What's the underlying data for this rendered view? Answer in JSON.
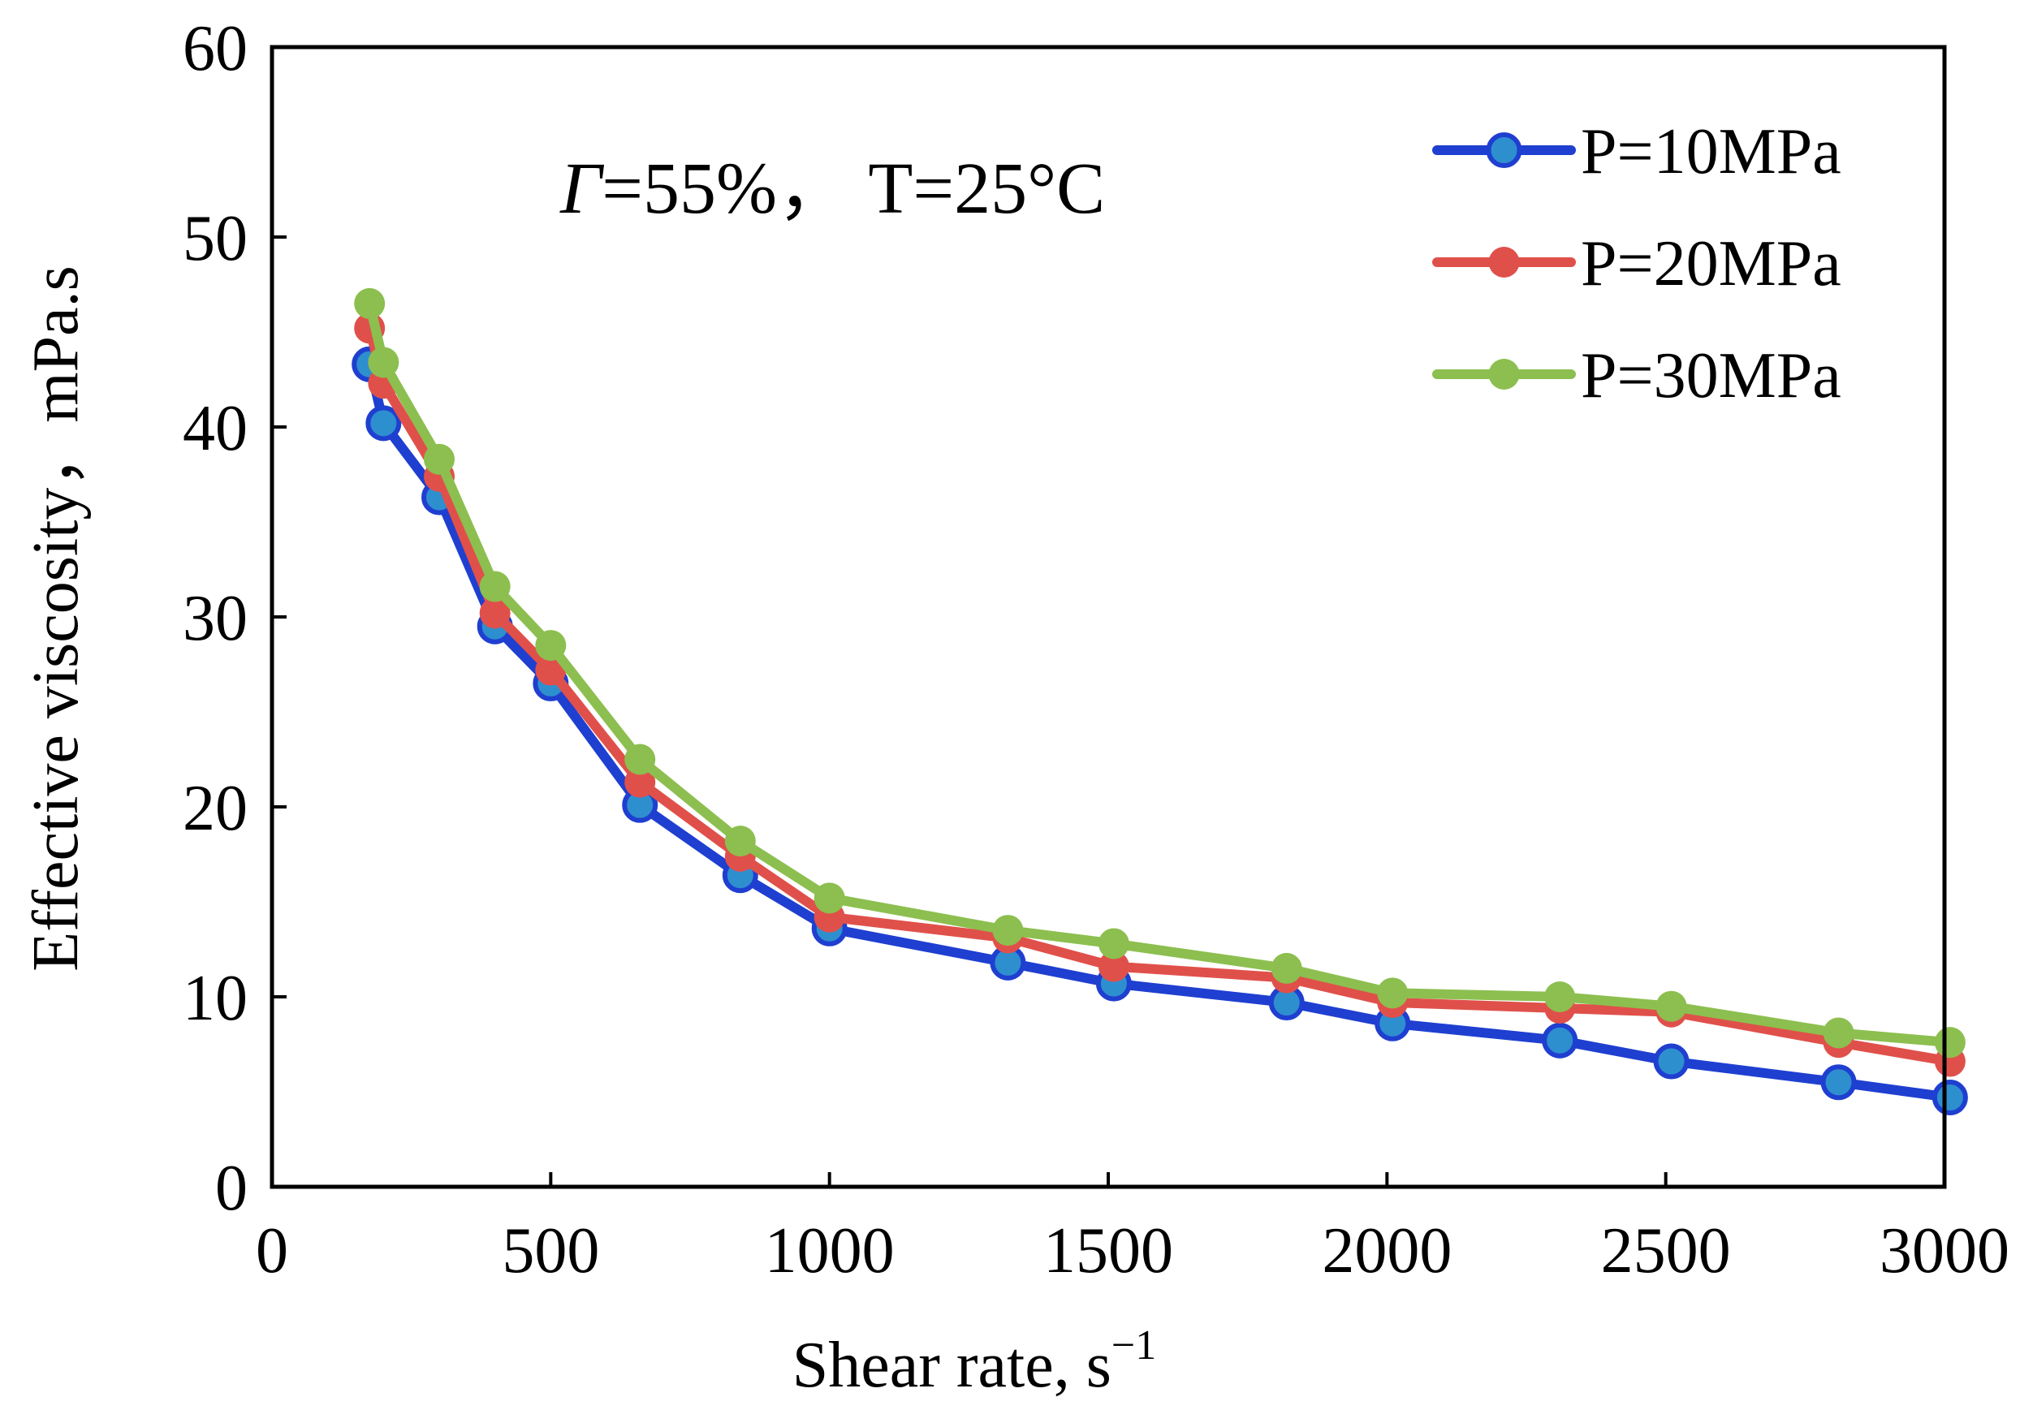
{
  "chart_data": {
    "type": "line",
    "title": "",
    "annotation": {
      "gamma_symbol": "Γ",
      "text": "=55%，  T=25°C"
    },
    "xlabel": {
      "text": "Shear rate, s",
      "superscript": "−1"
    },
    "ylabel": "Effective viscosity，mPa.s",
    "xlim": [
      0,
      3000
    ],
    "ylim": [
      0,
      60
    ],
    "xticks": [
      0,
      500,
      1000,
      1500,
      2000,
      2500,
      3000
    ],
    "yticks": [
      0,
      10,
      20,
      30,
      40,
      50,
      60
    ],
    "grid": false,
    "legend_position": "top-right",
    "series": [
      {
        "name": "P=10MPa",
        "color": "#1f3fd0",
        "marker_fill": "#2e8fcf",
        "x": [
          175,
          200,
          300,
          400,
          500,
          660,
          840,
          1000,
          1320,
          1510,
          1820,
          2010,
          2310,
          2510,
          2810,
          3010
        ],
        "y": [
          43.3,
          40.2,
          36.3,
          29.5,
          26.5,
          20.1,
          16.4,
          13.6,
          11.8,
          10.7,
          9.7,
          8.6,
          7.7,
          6.6,
          5.5,
          4.7
        ]
      },
      {
        "name": "P=20MPa",
        "color": "#e0504a",
        "marker_fill": "#e0504a",
        "x": [
          175,
          200,
          300,
          400,
          500,
          660,
          840,
          1000,
          1320,
          1510,
          1820,
          2010,
          2310,
          2510,
          2810,
          3010
        ],
        "y": [
          45.2,
          42.3,
          37.4,
          30.2,
          27.2,
          21.3,
          17.4,
          14.2,
          13.1,
          11.6,
          11.0,
          9.7,
          9.4,
          9.2,
          7.6,
          6.6
        ]
      },
      {
        "name": "P=30MPa",
        "color": "#8cbf4f",
        "marker_fill": "#8cbf4f",
        "x": [
          175,
          200,
          300,
          400,
          500,
          660,
          840,
          1000,
          1320,
          1510,
          1820,
          2010,
          2310,
          2510,
          2810,
          3010
        ],
        "y": [
          46.5,
          43.4,
          38.3,
          31.6,
          28.5,
          22.5,
          18.2,
          15.2,
          13.5,
          12.8,
          11.5,
          10.2,
          10.0,
          9.5,
          8.1,
          7.6
        ]
      }
    ]
  }
}
